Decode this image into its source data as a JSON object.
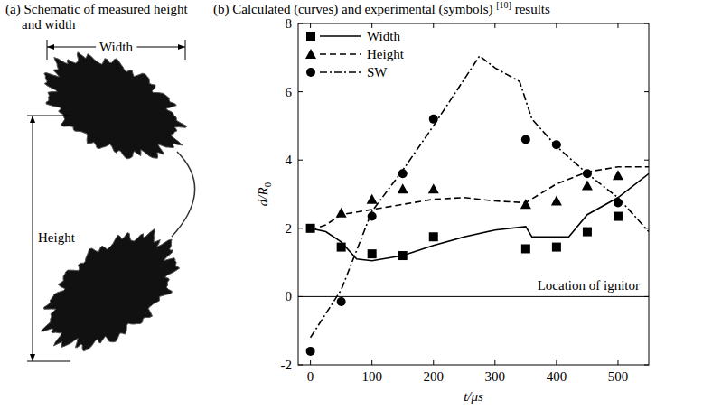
{
  "panel_a": {
    "title": "(a) Schematic of measured height and width",
    "width_label": "Width",
    "height_label": "Height"
  },
  "chart_data": {
    "type": "line",
    "title": "(b) Calculated (curves) and experimental (symbols)",
    "title_superscript": "[10]",
    "title_suffix": "results",
    "xlabel": "t/μs",
    "ylabel": "d/R",
    "ylabel_subscript": "0",
    "xlim": [
      -20,
      550
    ],
    "ylim": [
      -2,
      8
    ],
    "xticks": [
      0,
      100,
      200,
      300,
      400,
      500
    ],
    "yticks": [
      -2,
      0,
      2,
      4,
      6,
      8
    ],
    "grid": false,
    "legend": "upper left",
    "reference_line": {
      "value": 0,
      "label": "Location of ignitor"
    },
    "series": [
      {
        "name": "Width",
        "color": "#000000",
        "marker": "square",
        "line_style": "solid",
        "calculated": {
          "x": [
            0,
            25,
            50,
            75,
            100,
            150,
            200,
            250,
            300,
            350,
            360,
            420,
            450,
            500,
            550
          ],
          "values": [
            2.0,
            1.9,
            1.6,
            1.1,
            1.05,
            1.2,
            1.5,
            1.75,
            1.95,
            2.05,
            1.75,
            1.75,
            2.4,
            2.9,
            3.6
          ]
        },
        "experimental": {
          "x": [
            0,
            50,
            100,
            150,
            200,
            350,
            400,
            450,
            500
          ],
          "values": [
            2.0,
            1.45,
            1.25,
            1.2,
            1.75,
            1.4,
            1.45,
            1.9,
            2.35
          ]
        }
      },
      {
        "name": "Height",
        "color": "#000000",
        "marker": "triangle",
        "line_style": "dashed",
        "calculated": {
          "x": [
            0,
            25,
            50,
            100,
            150,
            200,
            250,
            300,
            350,
            400,
            450,
            500,
            550
          ],
          "values": [
            1.95,
            2.1,
            2.4,
            2.55,
            2.7,
            2.85,
            2.9,
            2.8,
            2.75,
            3.3,
            3.65,
            3.8,
            3.8
          ]
        },
        "experimental": {
          "x": [
            50,
            100,
            150,
            200,
            350,
            400,
            450,
            500
          ],
          "values": [
            2.45,
            2.85,
            3.15,
            3.15,
            2.7,
            2.8,
            3.25,
            3.55
          ]
        }
      },
      {
        "name": "SW",
        "color": "#000000",
        "marker": "circle",
        "line_style": "dashdot",
        "calculated": {
          "x": [
            0,
            50,
            100,
            150,
            200,
            275,
            300,
            340,
            360,
            400,
            450,
            500,
            550
          ],
          "values": [
            -1.2,
            0.2,
            2.5,
            3.7,
            5.0,
            7.05,
            6.7,
            6.3,
            5.2,
            4.4,
            3.6,
            2.9,
            1.9
          ]
        },
        "experimental": {
          "x": [
            0,
            50,
            100,
            150,
            200,
            350,
            400,
            450,
            500
          ],
          "values": [
            -1.6,
            -0.15,
            2.35,
            3.6,
            5.2,
            4.6,
            4.45,
            3.6,
            2.75
          ]
        }
      }
    ]
  }
}
